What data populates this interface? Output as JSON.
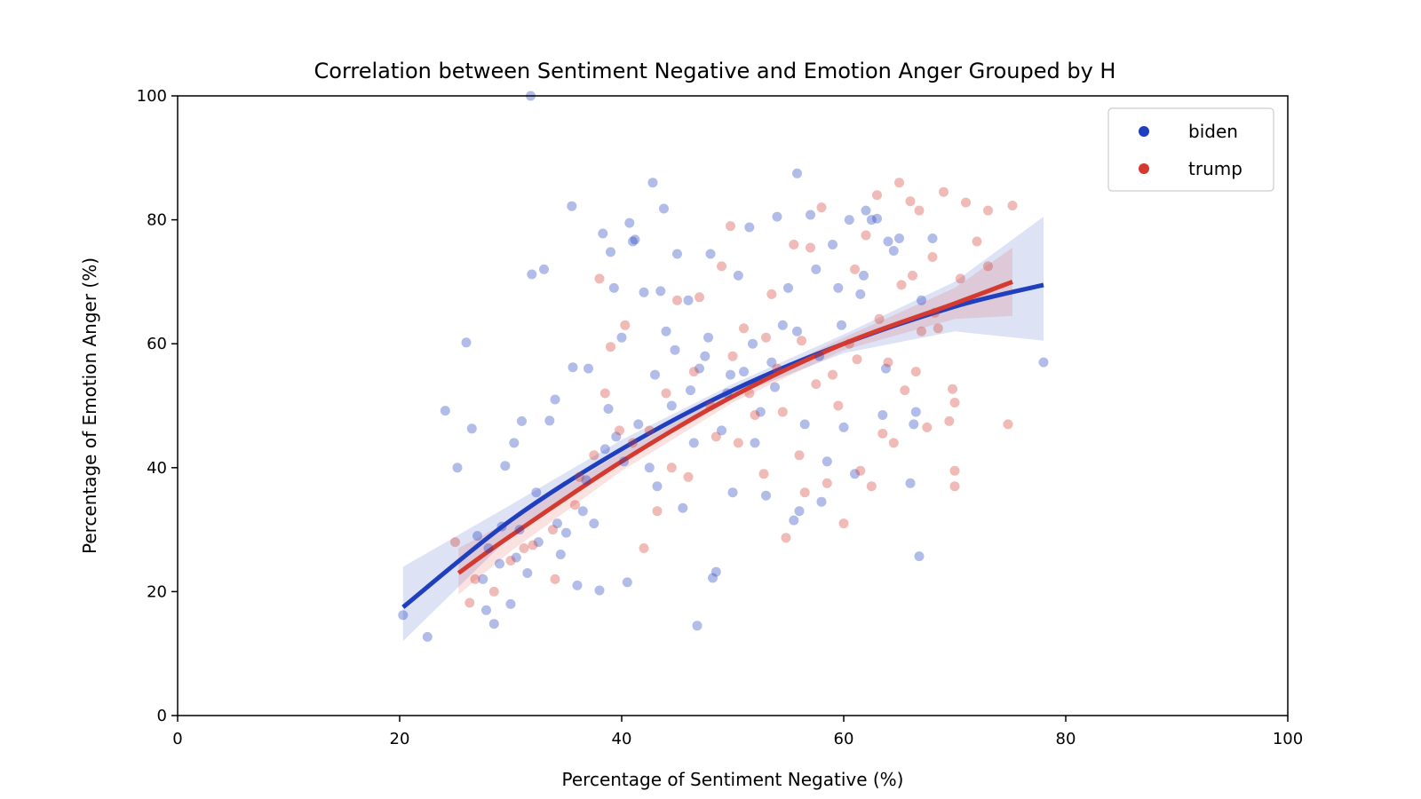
{
  "chart_data": {
    "type": "scatter",
    "title": "Correlation between Sentiment Negative and Emotion Anger Grouped by H",
    "xlabel": "Percentage of Sentiment Negative (%)",
    "ylabel": "Percentage of Emotion Anger (%)",
    "xlim": [
      0,
      100
    ],
    "ylim": [
      0,
      100
    ],
    "xticks": [
      0,
      20,
      40,
      60,
      80,
      100
    ],
    "yticks": [
      0,
      20,
      40,
      60,
      80,
      100
    ],
    "grid": false,
    "legend": {
      "placement": "top-right",
      "entries": [
        "biden",
        "trump"
      ]
    },
    "series": [
      {
        "name": "biden",
        "color": "#1f3fbf",
        "points": [
          [
            20.3,
            16.2
          ],
          [
            22.5,
            12.7
          ],
          [
            24.1,
            49.2
          ],
          [
            25.2,
            40.0
          ],
          [
            26.0,
            60.2
          ],
          [
            26.5,
            46.3
          ],
          [
            27.0,
            29.0
          ],
          [
            27.5,
            22.0
          ],
          [
            28.0,
            27.0
          ],
          [
            28.5,
            14.8
          ],
          [
            29.0,
            24.5
          ],
          [
            29.5,
            40.3
          ],
          [
            30.0,
            18.0
          ],
          [
            30.3,
            44.0
          ],
          [
            30.8,
            30.0
          ],
          [
            31.0,
            47.5
          ],
          [
            31.5,
            23.0
          ],
          [
            31.8,
            100.0
          ],
          [
            31.9,
            71.2
          ],
          [
            32.3,
            36.0
          ],
          [
            33.0,
            72.0
          ],
          [
            33.5,
            47.6
          ],
          [
            34.0,
            51.0
          ],
          [
            34.2,
            31.0
          ],
          [
            35.0,
            29.5
          ],
          [
            35.5,
            82.2
          ],
          [
            35.6,
            56.2
          ],
          [
            36.0,
            21.0
          ],
          [
            36.5,
            33.0
          ],
          [
            37.0,
            56.0
          ],
          [
            37.5,
            31.0
          ],
          [
            38.0,
            20.2
          ],
          [
            38.3,
            77.8
          ],
          [
            38.5,
            43.0
          ],
          [
            39.0,
            74.8
          ],
          [
            39.3,
            69.0
          ],
          [
            39.5,
            45.0
          ],
          [
            40.0,
            61.0
          ],
          [
            40.5,
            21.5
          ],
          [
            40.7,
            79.5
          ],
          [
            41.0,
            76.5
          ],
          [
            41.2,
            76.8
          ],
          [
            41.5,
            47.0
          ],
          [
            42.0,
            68.3
          ],
          [
            42.5,
            40.0
          ],
          [
            42.8,
            86.0
          ],
          [
            43.0,
            55.0
          ],
          [
            43.5,
            68.5
          ],
          [
            43.8,
            81.8
          ],
          [
            44.0,
            62.0
          ],
          [
            44.5,
            50.0
          ],
          [
            45.0,
            74.5
          ],
          [
            45.5,
            33.5
          ],
          [
            46.0,
            67.0
          ],
          [
            46.5,
            44.0
          ],
          [
            46.8,
            14.5
          ],
          [
            47.0,
            56.0
          ],
          [
            47.5,
            58.0
          ],
          [
            48.0,
            74.5
          ],
          [
            48.2,
            22.2
          ],
          [
            48.5,
            23.2
          ],
          [
            49.0,
            46.0
          ],
          [
            49.5,
            52.0
          ],
          [
            50.0,
            36.0
          ],
          [
            50.5,
            71.0
          ],
          [
            51.0,
            55.5
          ],
          [
            51.5,
            78.8
          ],
          [
            52.0,
            44.0
          ],
          [
            52.5,
            49.0
          ],
          [
            53.0,
            35.5
          ],
          [
            53.5,
            57.0
          ],
          [
            54.0,
            80.5
          ],
          [
            54.5,
            63.0
          ],
          [
            55.0,
            69.0
          ],
          [
            55.5,
            31.5
          ],
          [
            55.8,
            87.5
          ],
          [
            56.0,
            33.0
          ],
          [
            56.5,
            47.0
          ],
          [
            57.0,
            80.8
          ],
          [
            57.5,
            72.0
          ],
          [
            58.0,
            34.5
          ],
          [
            58.5,
            41.0
          ],
          [
            59.0,
            76.0
          ],
          [
            59.5,
            69.0
          ],
          [
            60.0,
            46.5
          ],
          [
            60.5,
            80.0
          ],
          [
            61.0,
            39.0
          ],
          [
            61.5,
            68.0
          ],
          [
            62.0,
            81.5
          ],
          [
            62.5,
            80.0
          ],
          [
            63.0,
            80.2
          ],
          [
            63.5,
            48.5
          ],
          [
            64.0,
            76.5
          ],
          [
            64.5,
            75.0
          ],
          [
            65.0,
            77.0
          ],
          [
            66.0,
            37.5
          ],
          [
            66.3,
            47.0
          ],
          [
            66.5,
            49.0
          ],
          [
            66.8,
            25.7
          ],
          [
            67.0,
            67.0
          ],
          [
            68.0,
            77.0
          ],
          [
            78.0,
            57.0
          ],
          [
            27.8,
            17.0
          ],
          [
            29.2,
            30.5
          ],
          [
            30.5,
            25.5
          ],
          [
            32.5,
            28.0
          ],
          [
            34.5,
            26.0
          ],
          [
            36.8,
            38.0
          ],
          [
            38.8,
            49.5
          ],
          [
            40.2,
            41.0
          ],
          [
            43.2,
            37.0
          ],
          [
            44.8,
            59.0
          ],
          [
            46.2,
            52.5
          ],
          [
            47.8,
            61.0
          ],
          [
            49.8,
            55.0
          ],
          [
            51.8,
            60.0
          ],
          [
            53.8,
            53.0
          ],
          [
            55.8,
            62.0
          ],
          [
            57.8,
            58.0
          ],
          [
            59.8,
            63.0
          ],
          [
            61.8,
            71.0
          ],
          [
            63.8,
            56.0
          ]
        ]
      },
      {
        "name": "trump",
        "color": "#d43a2f",
        "points": [
          [
            25.0,
            28.0
          ],
          [
            26.3,
            18.2
          ],
          [
            28.5,
            20.0
          ],
          [
            30.0,
            25.0
          ],
          [
            32.0,
            27.5
          ],
          [
            34.0,
            22.0
          ],
          [
            35.8,
            34.0
          ],
          [
            37.5,
            42.0
          ],
          [
            38.0,
            70.5
          ],
          [
            38.5,
            52.0
          ],
          [
            39.0,
            59.5
          ],
          [
            40.3,
            63.0
          ],
          [
            41.0,
            44.0
          ],
          [
            42.0,
            27.0
          ],
          [
            43.2,
            33.0
          ],
          [
            44.0,
            52.0
          ],
          [
            45.0,
            67.0
          ],
          [
            46.0,
            38.5
          ],
          [
            47.0,
            67.5
          ],
          [
            48.0,
            50.0
          ],
          [
            49.0,
            72.5
          ],
          [
            49.8,
            79.0
          ],
          [
            50.5,
            44.0
          ],
          [
            51.0,
            62.5
          ],
          [
            52.0,
            48.5
          ],
          [
            52.8,
            39.0
          ],
          [
            53.5,
            68.0
          ],
          [
            54.0,
            56.0
          ],
          [
            54.8,
            28.7
          ],
          [
            55.5,
            76.0
          ],
          [
            56.0,
            42.0
          ],
          [
            56.5,
            36.0
          ],
          [
            57.0,
            75.5
          ],
          [
            58.0,
            82.0
          ],
          [
            58.5,
            37.5
          ],
          [
            59.0,
            55.0
          ],
          [
            60.0,
            31.0
          ],
          [
            60.5,
            60.0
          ],
          [
            61.0,
            72.0
          ],
          [
            61.5,
            39.5
          ],
          [
            62.0,
            77.5
          ],
          [
            62.5,
            37.0
          ],
          [
            63.0,
            84.0
          ],
          [
            63.5,
            45.5
          ],
          [
            64.0,
            57.0
          ],
          [
            64.5,
            44.0
          ],
          [
            65.0,
            86.0
          ],
          [
            65.5,
            52.5
          ],
          [
            66.0,
            83.0
          ],
          [
            66.5,
            55.5
          ],
          [
            66.8,
            81.5
          ],
          [
            67.0,
            62.0
          ],
          [
            67.5,
            46.5
          ],
          [
            68.0,
            74.0
          ],
          [
            68.5,
            62.5
          ],
          [
            69.0,
            84.5
          ],
          [
            69.5,
            47.5
          ],
          [
            69.8,
            52.7
          ],
          [
            70.0,
            39.5
          ],
          [
            70.0,
            37.0
          ],
          [
            70.0,
            50.5
          ],
          [
            71.0,
            82.8
          ],
          [
            72.0,
            76.5
          ],
          [
            73.0,
            81.5
          ],
          [
            73.0,
            72.5
          ],
          [
            74.8,
            47.0
          ],
          [
            75.2,
            82.3
          ],
          [
            26.8,
            22.0
          ],
          [
            31.2,
            27.0
          ],
          [
            33.8,
            30.0
          ],
          [
            36.2,
            38.5
          ],
          [
            39.8,
            46.0
          ],
          [
            42.5,
            46.0
          ],
          [
            44.5,
            40.0
          ],
          [
            46.5,
            55.5
          ],
          [
            48.5,
            45.0
          ],
          [
            50.0,
            58.0
          ],
          [
            51.5,
            52.0
          ],
          [
            53.0,
            61.0
          ],
          [
            54.5,
            49.0
          ],
          [
            56.2,
            60.5
          ],
          [
            57.5,
            53.5
          ],
          [
            59.5,
            50.0
          ],
          [
            61.2,
            57.5
          ],
          [
            63.2,
            64.0
          ],
          [
            65.2,
            69.5
          ],
          [
            66.2,
            71.0
          ],
          [
            68.2,
            65.0
          ],
          [
            70.5,
            70.5
          ]
        ]
      }
    ],
    "fits": [
      {
        "name": "biden",
        "color": "#1f3fbf",
        "x": [
          20.3,
          30,
          40,
          50,
          60,
          70,
          78.0
        ],
        "y": [
          17.5,
          31.5,
          43.0,
          52.5,
          60.0,
          66.0,
          69.5
        ],
        "ci_upper": [
          24.0,
          34.0,
          44.5,
          53.5,
          61.5,
          70.0,
          80.5
        ],
        "ci_lower": [
          12.0,
          29.0,
          41.5,
          51.5,
          58.5,
          62.0,
          60.5
        ]
      },
      {
        "name": "trump",
        "color": "#d43a2f",
        "x": [
          25.3,
          30,
          40,
          50,
          60,
          70,
          75.2
        ],
        "y": [
          23.0,
          29.0,
          41.0,
          51.5,
          60.0,
          66.5,
          70.0
        ],
        "ci_upper": [
          27.0,
          31.5,
          42.5,
          52.5,
          61.0,
          69.0,
          75.5
        ],
        "ci_lower": [
          19.5,
          26.5,
          39.5,
          50.5,
          59.0,
          64.0,
          64.5
        ]
      }
    ]
  }
}
